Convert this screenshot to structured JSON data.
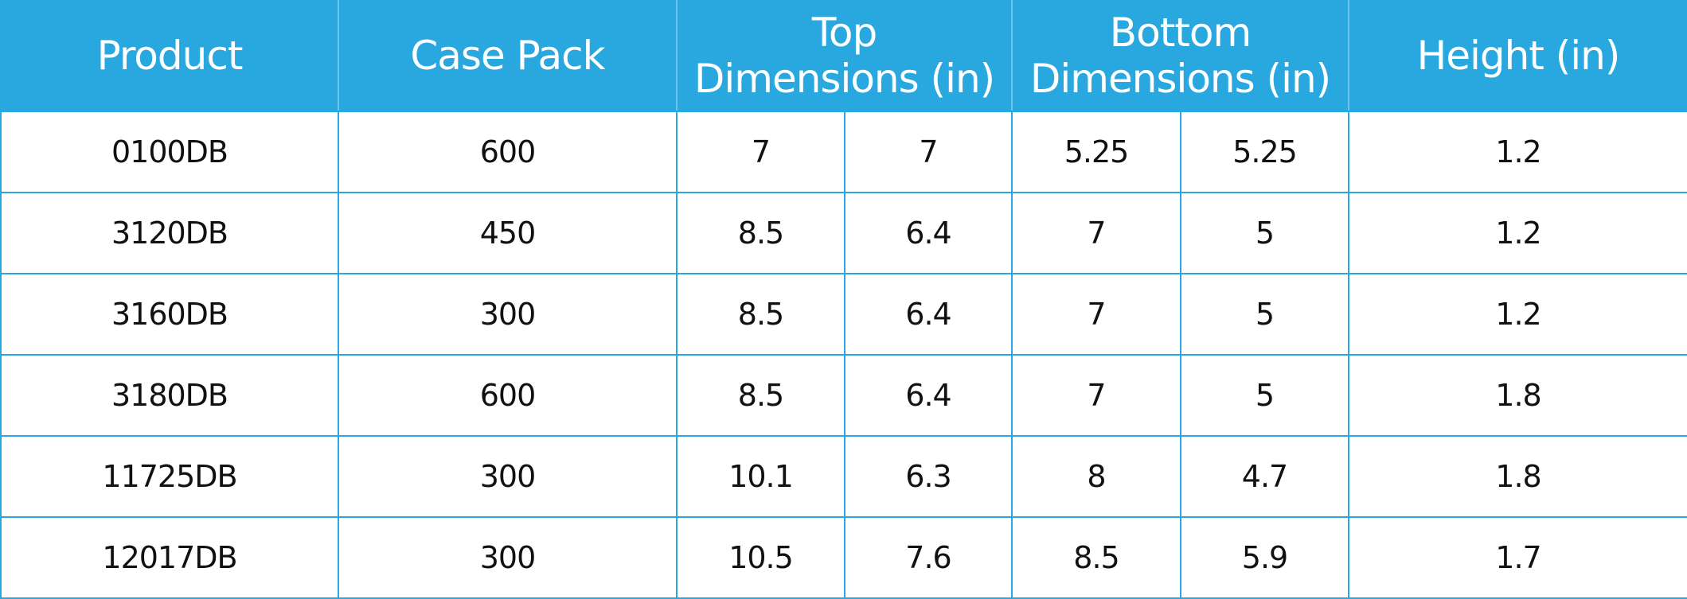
{
  "table": {
    "header": [
      {
        "lines": [
          "Product"
        ],
        "span": 1
      },
      {
        "lines": [
          "Case Pack"
        ],
        "span": 1
      },
      {
        "lines": [
          "Top",
          "Dimensions (in)"
        ],
        "span": 2
      },
      {
        "lines": [
          "Bottom",
          "Dimensions (in)"
        ],
        "span": 2
      },
      {
        "lines": [
          "Height (in)"
        ],
        "span": 1
      }
    ],
    "rows": [
      [
        "0100DB",
        "600",
        "7",
        "7",
        "5.25",
        "5.25",
        "1.2"
      ],
      [
        "3120DB",
        "450",
        "8.5",
        "6.4",
        "7",
        "5",
        "1.2"
      ],
      [
        "3160DB",
        "300",
        "8.5",
        "6.4",
        "7",
        "5",
        "1.2"
      ],
      [
        "3180DB",
        "600",
        "8.5",
        "6.4",
        "7",
        "5",
        "1.8"
      ],
      [
        "11725DB",
        "300",
        "10.1",
        "6.3",
        "8",
        "4.7",
        "1.8"
      ],
      [
        "12017DB",
        "300",
        "10.5",
        "7.6",
        "8.5",
        "5.9",
        "1.7"
      ]
    ]
  }
}
